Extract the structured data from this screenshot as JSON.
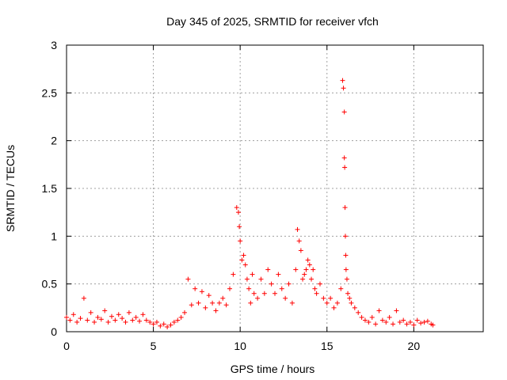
{
  "chart_data": {
    "type": "scatter",
    "title": "Day 345 of 2025, SRMTID for receiver vfch",
    "xlabel": "GPS time / hours",
    "ylabel": "SRMTID / TECUs",
    "xlim": [
      0,
      24
    ],
    "ylim": [
      0,
      3
    ],
    "xticks": [
      0,
      5,
      10,
      15,
      20
    ],
    "xtick_labels": [
      "0",
      "5",
      "10",
      "15",
      "20"
    ],
    "yticks": [
      0,
      0.5,
      1,
      1.5,
      2,
      2.5,
      3
    ],
    "ytick_labels": [
      "0",
      "0.5",
      "1",
      "1.5",
      "2",
      "2.5",
      "3"
    ],
    "grid": true,
    "marker": "+",
    "series": [
      {
        "name": "SRMTID",
        "color": "#ff0000",
        "x": [
          0.0,
          0.2,
          0.4,
          0.6,
          0.8,
          1.0,
          1.2,
          1.4,
          1.6,
          1.8,
          2.0,
          2.2,
          2.4,
          2.6,
          2.8,
          3.0,
          3.2,
          3.4,
          3.6,
          3.8,
          4.0,
          4.2,
          4.4,
          4.6,
          4.8,
          5.0,
          5.2,
          5.4,
          5.6,
          5.8,
          6.0,
          6.2,
          6.4,
          6.6,
          6.8,
          7.0,
          7.2,
          7.4,
          7.6,
          7.8,
          8.0,
          8.2,
          8.4,
          8.6,
          8.8,
          9.0,
          9.2,
          9.4,
          9.6,
          9.8,
          9.9,
          9.95,
          10.0,
          10.1,
          10.2,
          10.3,
          10.4,
          10.5,
          10.6,
          10.7,
          10.8,
          11.0,
          11.2,
          11.4,
          11.6,
          11.8,
          12.0,
          12.2,
          12.4,
          12.6,
          12.8,
          13.0,
          13.2,
          13.3,
          13.4,
          13.5,
          13.6,
          13.7,
          13.8,
          13.9,
          14.0,
          14.1,
          14.2,
          14.3,
          14.4,
          14.6,
          14.8,
          15.0,
          15.2,
          15.4,
          15.6,
          15.8,
          15.9,
          15.95,
          16.0,
          16.0,
          16.02,
          16.04,
          16.06,
          16.08,
          16.1,
          16.15,
          16.2,
          16.3,
          16.4,
          16.6,
          16.8,
          17.0,
          17.2,
          17.4,
          17.6,
          17.8,
          18.0,
          18.2,
          18.4,
          18.6,
          18.8,
          19.0,
          19.2,
          19.4,
          19.6,
          19.8,
          20.0,
          20.2,
          20.4,
          20.6,
          20.8,
          21.0,
          21.1
        ],
        "y": [
          0.15,
          0.12,
          0.18,
          0.1,
          0.14,
          0.35,
          0.12,
          0.2,
          0.1,
          0.15,
          0.13,
          0.22,
          0.1,
          0.16,
          0.12,
          0.18,
          0.14,
          0.1,
          0.2,
          0.12,
          0.15,
          0.11,
          0.18,
          0.12,
          0.1,
          0.08,
          0.1,
          0.06,
          0.08,
          0.05,
          0.07,
          0.1,
          0.12,
          0.15,
          0.2,
          0.55,
          0.28,
          0.45,
          0.3,
          0.42,
          0.25,
          0.38,
          0.3,
          0.22,
          0.3,
          0.35,
          0.28,
          0.45,
          0.6,
          1.3,
          1.25,
          1.1,
          0.95,
          0.75,
          0.8,
          0.7,
          0.55,
          0.45,
          0.3,
          0.6,
          0.4,
          0.35,
          0.55,
          0.4,
          0.65,
          0.5,
          0.4,
          0.6,
          0.45,
          0.35,
          0.5,
          0.3,
          0.65,
          1.07,
          0.95,
          0.85,
          0.55,
          0.6,
          0.65,
          0.75,
          0.7,
          0.55,
          0.65,
          0.45,
          0.4,
          0.5,
          0.35,
          0.3,
          0.35,
          0.25,
          0.3,
          0.45,
          2.63,
          2.55,
          2.3,
          1.82,
          1.72,
          1.3,
          1.0,
          0.8,
          0.65,
          0.55,
          0.4,
          0.35,
          0.3,
          0.25,
          0.2,
          0.15,
          0.12,
          0.1,
          0.15,
          0.08,
          0.22,
          0.12,
          0.1,
          0.15,
          0.08,
          0.22,
          0.1,
          0.12,
          0.08,
          0.1,
          0.07,
          0.12,
          0.09,
          0.1,
          0.11,
          0.08,
          0.07
        ]
      }
    ]
  }
}
